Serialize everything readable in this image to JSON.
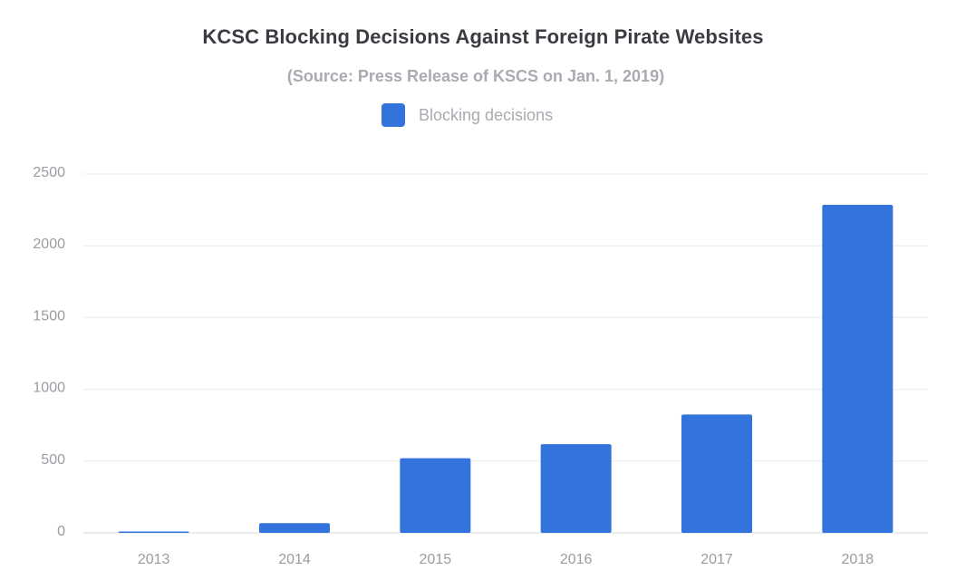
{
  "chart_data": {
    "type": "bar",
    "title": "KCSC Blocking Decisions Against Foreign Pirate Websites",
    "subtitle": "(Source: Press Release of KSCS on Jan. 1, 2019)",
    "categories": [
      "2013",
      "2014",
      "2015",
      "2016",
      "2017",
      "2018"
    ],
    "series": [
      {
        "name": "Blocking decisions",
        "values": [
          8,
          68,
          520,
          618,
          825,
          2285
        ],
        "color": "#3273dc"
      }
    ],
    "yticks": [
      "0",
      "500",
      "1000",
      "1500",
      "2000",
      "2500"
    ],
    "ylim": [
      0,
      2500
    ],
    "xlabel": "",
    "ylabel": "",
    "grid": true,
    "legend_position": "top-center"
  }
}
